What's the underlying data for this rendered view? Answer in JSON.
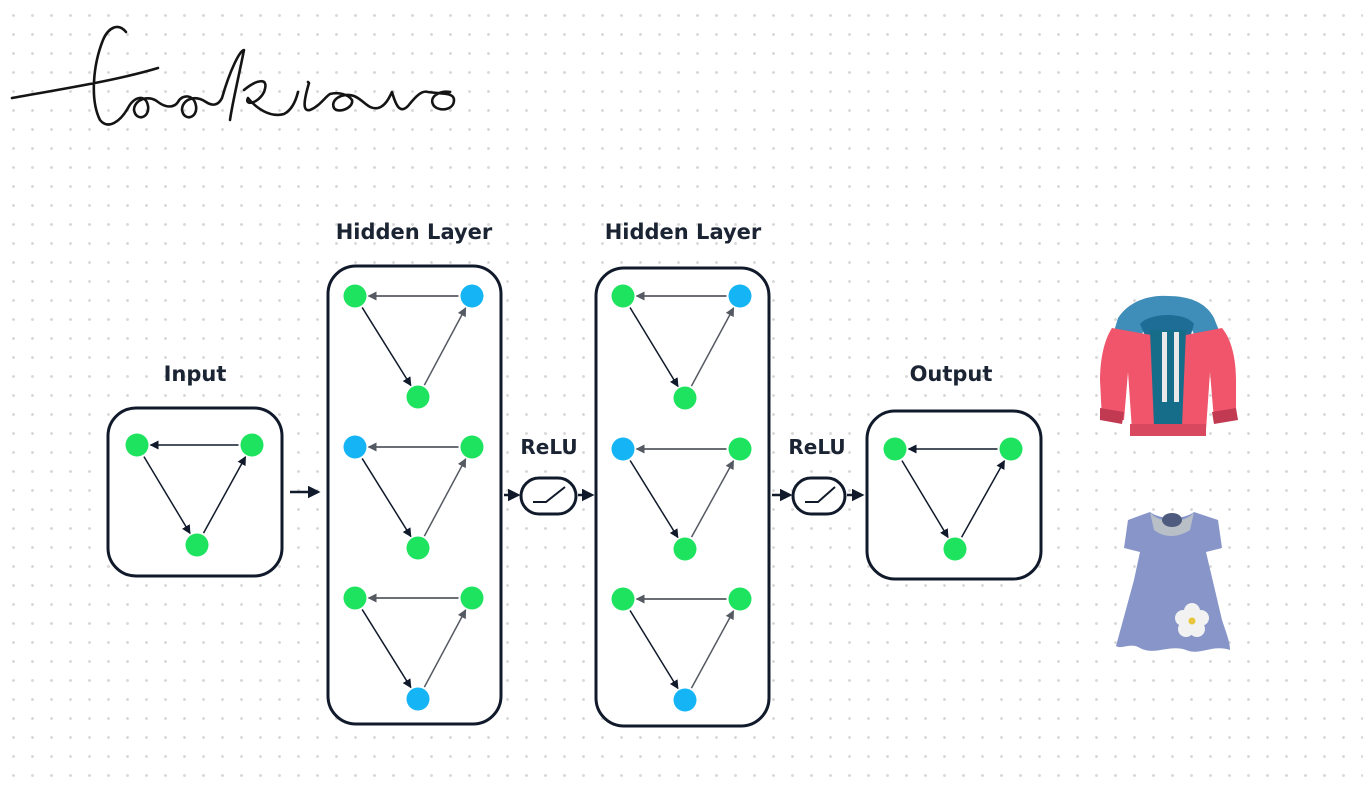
{
  "brand": {
    "logo_text": "lookiero"
  },
  "diagram": {
    "input_label": "Input",
    "hidden_labels": [
      "Hidden Layer",
      "Hidden Layer"
    ],
    "activation_labels": [
      "ReLU",
      "ReLU"
    ],
    "output_label": "Output"
  },
  "outputs": [
    {
      "icon": "jacket-icon"
    },
    {
      "icon": "dress-icon"
    }
  ],
  "colors": {
    "node_green": "#1ee35f",
    "node_blue": "#14b4f5",
    "outline": "#101a2b",
    "text": "#1b2433"
  }
}
